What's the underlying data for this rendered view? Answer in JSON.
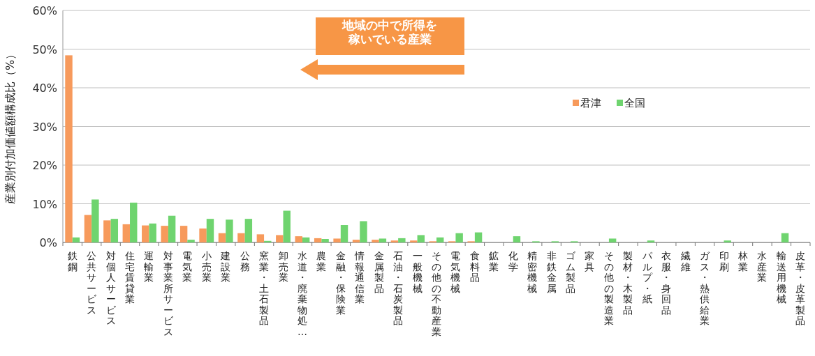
{
  "chart_data": {
    "type": "bar",
    "ylabel": "産業別付加価値額構成比（%）",
    "categories": [
      "鉄鋼",
      "公共サービス",
      "対個人サービス",
      "住宅賃貸業",
      "運輸業",
      "対事業所サービス",
      "電気業",
      "小売業",
      "建設業",
      "公務",
      "窯業・土石製品",
      "卸売業",
      "水道・廃棄物処…",
      "農業",
      "金融・保険業",
      "情報通信業",
      "金属製品",
      "石油・石炭製品",
      "一般機械",
      "その他の不動産業",
      "電気機械",
      "食料品",
      "鉱業",
      "化学",
      "精密機械",
      "非鉄金属",
      "ゴム製品",
      "家具",
      "その他の製造業",
      "製材・木製品",
      "パルプ・紙",
      "衣服・身回品",
      "繊維",
      "ガス・熱供給業",
      "印刷",
      "林業",
      "水産業",
      "輸送用機械",
      "皮革・皮革製品"
    ],
    "series": [
      {
        "name": "君津",
        "color": "#f79a5c",
        "values": [
          48.4,
          7.1,
          5.7,
          4.7,
          4.4,
          4.3,
          4.3,
          3.6,
          2.4,
          2.4,
          2.1,
          1.9,
          1.6,
          1.1,
          1.0,
          0.7,
          0.7,
          0.5,
          0.5,
          0.3,
          0.3,
          0.3,
          0,
          0,
          0,
          0,
          0,
          0,
          0,
          0,
          0,
          0,
          0,
          0,
          0,
          0,
          0,
          0,
          0
        ]
      },
      {
        "name": "全国",
        "color": "#6fd46f",
        "values": [
          1.3,
          11.1,
          6.1,
          10.3,
          4.9,
          6.9,
          0.7,
          6.1,
          5.9,
          6.1,
          0.4,
          8.2,
          1.3,
          0.9,
          4.5,
          5.5,
          1.0,
          1.1,
          1.9,
          1.3,
          2.4,
          2.6,
          0,
          1.6,
          0.3,
          0.3,
          0.3,
          0,
          1.0,
          0,
          0.5,
          0,
          0,
          0,
          0.5,
          0,
          0,
          2.4,
          0
        ]
      }
    ],
    "ylim": [
      0,
      60
    ],
    "yticks": [
      {
        "value": 0,
        "label": "0%"
      },
      {
        "value": 10,
        "label": "10%"
      },
      {
        "value": 20,
        "label": "20%"
      },
      {
        "value": 30,
        "label": "30%"
      },
      {
        "value": 40,
        "label": "40%"
      },
      {
        "value": 50,
        "label": "50%"
      },
      {
        "value": 60,
        "label": "60%"
      }
    ],
    "grid": "y",
    "legend": "top right",
    "annotations": [
      "地域の中で所得を稼いでいる産業"
    ]
  }
}
